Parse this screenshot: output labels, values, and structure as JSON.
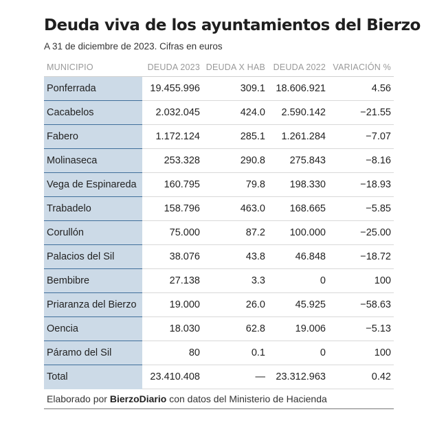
{
  "title": "Deuda viva de los ayuntamientos del Bierzo",
  "subtitle": "A 31 de diciembre de 2023. Cifras en euros",
  "source": {
    "prefix": "Elaborado por ",
    "brand": "BierzoDiario",
    "suffix": " con datos del Ministerio de Hacienda"
  },
  "colors": {
    "municipality_cell": "#ccdae7",
    "municipality_border": "#3f6e9a"
  },
  "chart_data": {
    "type": "table",
    "columns": [
      "MUNICIPIO",
      "DEUDA 2023",
      "DEUDA X HAB",
      "DEUDA 2022",
      "VARIACIÓN %"
    ],
    "rows": [
      [
        "Ponferrada",
        "19.455.996",
        "309.1",
        "18.606.921",
        "4.56"
      ],
      [
        "Cacabelos",
        "2.032.045",
        "424.0",
        "2.590.142",
        "−21.55"
      ],
      [
        "Fabero",
        "1.172.124",
        "285.1",
        "1.261.284",
        "−7.07"
      ],
      [
        "Molinaseca",
        "253.328",
        "290.8",
        "275.843",
        "−8.16"
      ],
      [
        "Vega de Espinareda",
        "160.795",
        "79.8",
        "198.330",
        "−18.93"
      ],
      [
        "Trabadelo",
        "158.796",
        "463.0",
        "168.665",
        "−5.85"
      ],
      [
        "Corullón",
        "75.000",
        "87.2",
        "100.000",
        "−25.00"
      ],
      [
        "Palacios del Sil",
        "38.076",
        "43.8",
        "46.848",
        "−18.72"
      ],
      [
        "Bembibre",
        "27.138",
        "3.3",
        "0",
        "100"
      ],
      [
        "Priaranza del Bierzo",
        "19.000",
        "26.0",
        "45.925",
        "−58.63"
      ],
      [
        "Oencia",
        "18.030",
        "62.8",
        "19.006",
        "−5.13"
      ],
      [
        "Páramo del Sil",
        "80",
        "0.1",
        "0",
        "100"
      ],
      [
        "Total",
        "23.410.408",
        "—",
        "23.312.963",
        "0.42"
      ]
    ]
  }
}
